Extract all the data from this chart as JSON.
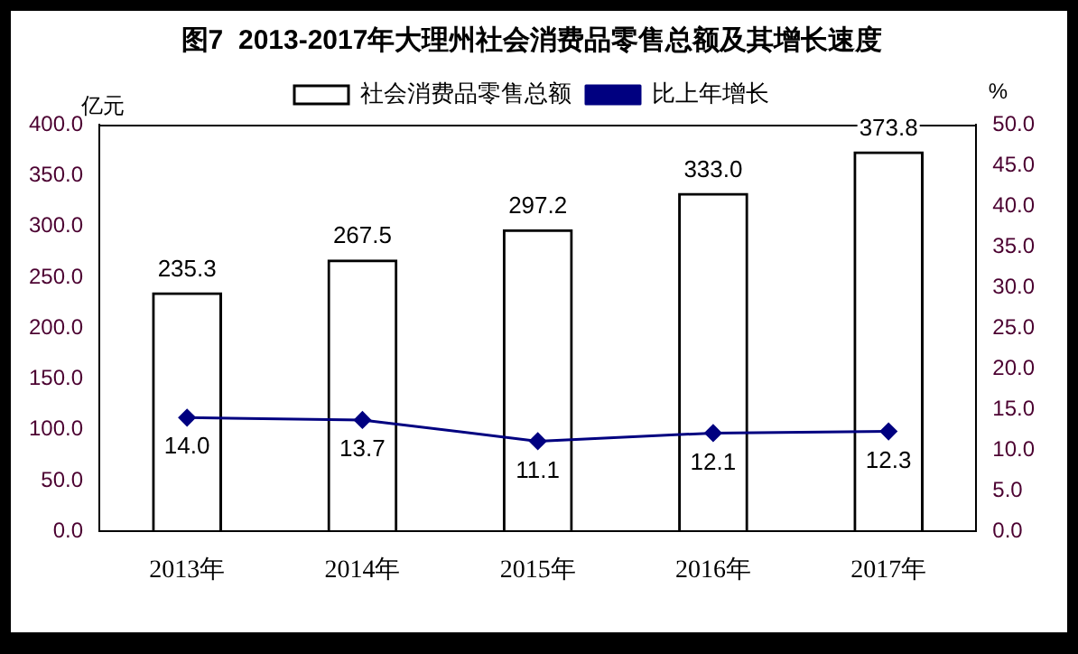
{
  "chart_data": {
    "type": "bar",
    "title": "图7  2013-2017年大理州社会消费品零售总额及其增长速度",
    "categories": [
      "2013年",
      "2014年",
      "2015年",
      "2016年",
      "2017年"
    ],
    "series": [
      {
        "name": "社会消费品零售总额",
        "color": "#000000",
        "values": [
          235.3,
          267.5,
          297.2,
          333.0,
          373.8
        ],
        "value_labels": [
          "235.3",
          "267.5",
          "297.2",
          "333.0",
          "373.8"
        ]
      },
      {
        "name": "比上年增长",
        "type": "line",
        "axis": "y2",
        "color": "#000080",
        "marker": "diamond",
        "values": [
          14.0,
          13.7,
          11.1,
          12.1,
          12.3
        ],
        "value_labels": [
          "14.0",
          "13.7",
          "11.1",
          "12.1",
          "12.3"
        ]
      }
    ],
    "ylabel": "亿元",
    "y2label": "%",
    "ylim": [
      0,
      400
    ],
    "yticks": [
      {
        "value": 0,
        "label": "0.0"
      },
      {
        "value": 50,
        "label": "50.0"
      },
      {
        "value": 100,
        "label": "100.0"
      },
      {
        "value": 150,
        "label": "150.0"
      },
      {
        "value": 200,
        "label": "200.0"
      },
      {
        "value": 250,
        "label": "250.0"
      },
      {
        "value": 300,
        "label": "300.0"
      },
      {
        "value": 350,
        "label": "350.0"
      },
      {
        "value": 400,
        "label": "400.0"
      }
    ],
    "y2lim": [
      0,
      50
    ],
    "y2ticks": [
      {
        "value": 0,
        "label": "0.0"
      },
      {
        "value": 5,
        "label": "5.0"
      },
      {
        "value": 10,
        "label": "10.0"
      },
      {
        "value": 15,
        "label": "15.0"
      },
      {
        "value": 20,
        "label": "20.0"
      },
      {
        "value": 25,
        "label": "25.0"
      },
      {
        "value": 30,
        "label": "30.0"
      },
      {
        "value": 35,
        "label": "35.0"
      },
      {
        "value": 40,
        "label": "40.0"
      },
      {
        "value": 45,
        "label": "45.0"
      },
      {
        "value": 50,
        "label": "50.0"
      }
    ],
    "legend": "top",
    "grid": false
  }
}
